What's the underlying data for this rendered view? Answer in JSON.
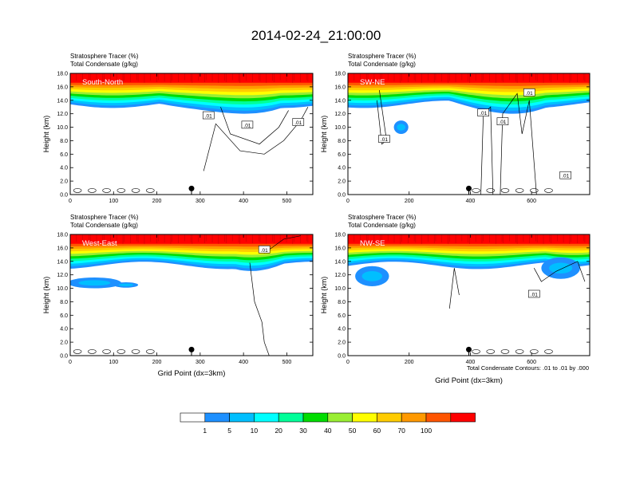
{
  "title": "2014-02-24_21:00:00",
  "footnote": "Total Condensate Contours: .01 to .01 by .000",
  "colorbar": {
    "labels": [
      "1",
      "5",
      "10",
      "20",
      "30",
      "40",
      "50",
      "60",
      "70",
      "100"
    ],
    "colors": [
      "#ffffff",
      "#1e90ff",
      "#00bfff",
      "#00ffff",
      "#00ff99",
      "#00dd00",
      "#99ee33",
      "#ffff00",
      "#ffcc00",
      "#ff9900",
      "#ff5500",
      "#ff0000"
    ]
  },
  "chart_data": [
    {
      "type": "filled-contour",
      "panel_label": "South-North",
      "titles": [
        "Stratosphere Tracer   (%)",
        "Total Condensate   (g/kg)"
      ],
      "ylabel": "Height (km)",
      "xlabel": "",
      "xlim": [
        0,
        560
      ],
      "ylim": [
        0,
        18
      ],
      "xticks": [
        "0",
        "100",
        "200",
        "300",
        "400",
        "500"
      ],
      "yticks": [
        "0.0",
        "2.0",
        "4.0",
        "6.0",
        "8.0",
        "10.0",
        "12.0",
        "14.0",
        "16.0",
        "18.0"
      ],
      "contour_labels": [
        ".01",
        ".01",
        ".01"
      ],
      "marker_x": 280
    },
    {
      "type": "filled-contour",
      "panel_label": "SW-NE",
      "titles": [
        "Stratosphere Tracer   (%)",
        "Total Condensate   (g/kg)"
      ],
      "ylabel": "Height (km)",
      "xlabel": "",
      "xlim": [
        0,
        790
      ],
      "ylim": [
        0,
        18
      ],
      "xticks": [
        "0",
        "200",
        "400",
        "600"
      ],
      "yticks": [
        "0.0",
        "2.0",
        "4.0",
        "6.0",
        "8.0",
        "10.0",
        "12.0",
        "14.0",
        "16.0",
        "18.0"
      ],
      "contour_labels": [
        ".01",
        ".01",
        ".01",
        ".01",
        ".01"
      ],
      "marker_x": 395
    },
    {
      "type": "filled-contour",
      "panel_label": "West-East",
      "titles": [
        "Stratosphere Tracer   (%)",
        "Total Condensate   (g/kg)"
      ],
      "ylabel": "Height (km)",
      "xlabel": "Grid Point (dx=3km)",
      "xlim": [
        0,
        560
      ],
      "ylim": [
        0,
        18
      ],
      "xticks": [
        "0",
        "100",
        "200",
        "300",
        "400",
        "500"
      ],
      "yticks": [
        "0.0",
        "2.0",
        "4.0",
        "6.0",
        "8.0",
        "10.0",
        "12.0",
        "14.0",
        "16.0",
        "18.0"
      ],
      "contour_labels": [
        ".01"
      ],
      "marker_x": 280
    },
    {
      "type": "filled-contour",
      "panel_label": "NW-SE",
      "titles": [
        "Stratosphere Tracer   (%)",
        "Total Condensate   (g/kg)"
      ],
      "ylabel": "Height (km)",
      "xlabel": "Grid Point (dx=3km)",
      "xlim": [
        0,
        790
      ],
      "ylim": [
        0,
        18
      ],
      "xticks": [
        "0",
        "200",
        "400",
        "600"
      ],
      "yticks": [
        "0.0",
        "2.0",
        "4.0",
        "6.0",
        "8.0",
        "10.0",
        "12.0",
        "14.0",
        "16.0",
        "18.0"
      ],
      "contour_labels": [
        ".01"
      ],
      "marker_x": 395
    }
  ]
}
